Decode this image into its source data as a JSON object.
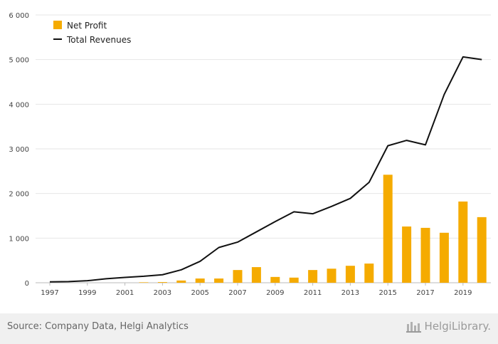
{
  "chart_data": {
    "type": "bar",
    "title": "",
    "xlabel": "",
    "ylabel": "",
    "x": [
      1997,
      1998,
      1999,
      2000,
      2001,
      2002,
      2003,
      2004,
      2005,
      2006,
      2007,
      2008,
      2009,
      2010,
      2011,
      2012,
      2013,
      2014,
      2015,
      2016,
      2017,
      2018,
      2019,
      2020
    ],
    "x_tick_labels": [
      "1997",
      "1999",
      "2001",
      "2003",
      "2005",
      "2007",
      "2009",
      "2011",
      "2013",
      "2015",
      "2017",
      "2019"
    ],
    "y_tick_labels": [
      "0",
      "1 000",
      "2 000",
      "3 000",
      "4 000",
      "5 000",
      "6 000"
    ],
    "y_ticks": [
      0,
      1000,
      2000,
      3000,
      4000,
      5000,
      6000
    ],
    "ylim": [
      0,
      6000
    ],
    "grid": "horizontal",
    "legend_position": "top-left",
    "series": [
      {
        "name": "Net Profit",
        "type": "bar",
        "color": "#f5ab00",
        "values": [
          0,
          0,
          0,
          0,
          0,
          10,
          15,
          50,
          95,
          95,
          285,
          350,
          130,
          115,
          285,
          315,
          380,
          430,
          2420,
          1260,
          1230,
          1120,
          1820,
          1470
        ]
      },
      {
        "name": "Total Revenues",
        "type": "line",
        "color": "#111111",
        "values": [
          20,
          25,
          45,
          90,
          120,
          145,
          180,
          290,
          480,
          790,
          910,
          1140,
          1370,
          1590,
          1545,
          1710,
          1890,
          2250,
          3070,
          3190,
          3090,
          4220,
          5060,
          5000
        ]
      }
    ]
  },
  "footer": {
    "source": "Source: Company Data, Helgi Analytics",
    "brand": "HelgiLibrary."
  }
}
